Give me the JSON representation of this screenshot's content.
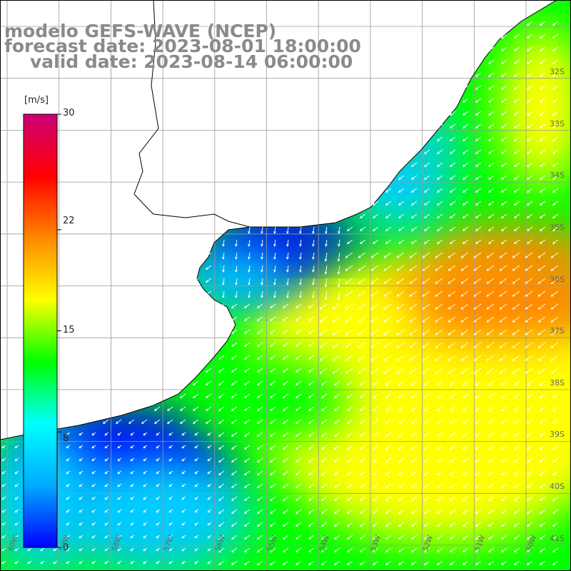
{
  "title": {
    "line1": "modelo GEFS-WAVE (NCEP)",
    "line2": "forecast date: 2023-08-01 18:00:00",
    "line3": "valid date: 2023-08-14 06:00:00"
  },
  "colorbar": {
    "unit": "[m/s]",
    "ticks": [
      "30",
      "22",
      "15",
      "8",
      "0"
    ],
    "tick_values": [
      30,
      22,
      15,
      8,
      0
    ],
    "range": [
      0,
      30
    ],
    "colors": [
      "#0000ff",
      "#00aaff",
      "#00ffff",
      "#00ff00",
      "#ffff00",
      "#ff8800",
      "#ff0000",
      "#cc0077"
    ]
  },
  "lat_labels": [
    "32S",
    "33S",
    "34S",
    "35S",
    "36S",
    "37S",
    "38S",
    "39S",
    "40S",
    "41S"
  ],
  "lon_labels": [
    "60W",
    "59W",
    "58W",
    "57W",
    "56W",
    "55W",
    "54W",
    "53W",
    "52W",
    "51W",
    "50W",
    "49W"
  ],
  "map": {
    "field": "wind speed",
    "ocean_colors": {
      "calm": "#0000ff",
      "light": "#00ccff",
      "moderate": "#00ff00",
      "fresh": "#ffff00",
      "strong": "#ff8800"
    },
    "land_color": "#ffffff",
    "coastline_color": "#000000",
    "arrow_color": "#ffffff"
  }
}
